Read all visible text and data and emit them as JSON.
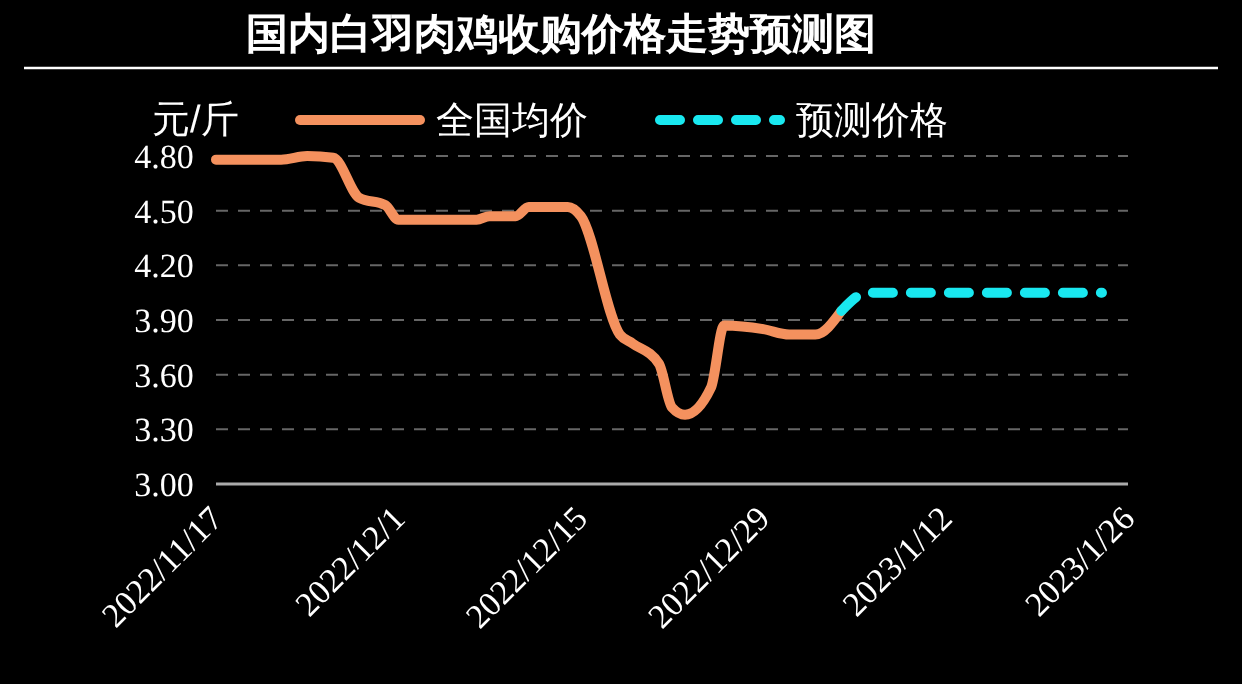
{
  "chart_data": {
    "type": "line",
    "title": "国内白羽肉鸡收购价格走势预测图",
    "ylabel": "元/斤",
    "series": [
      {
        "name": "全国均价",
        "color": "#f4915e",
        "line_style": "solid",
        "x": [
          "2022-11-17",
          "2022-11-22",
          "2022-11-24",
          "2022-11-26",
          "2022-11-28",
          "2022-11-30",
          "2022-12-01",
          "2022-12-07",
          "2022-12-08",
          "2022-12-10",
          "2022-12-11",
          "2022-12-14",
          "2022-12-15",
          "2022-12-18",
          "2022-12-19",
          "2022-12-21",
          "2022-12-22",
          "2022-12-23",
          "2022-12-25",
          "2022-12-26",
          "2022-12-29",
          "2022-12-31",
          "2023-01-02",
          "2023-01-04"
        ],
        "values": [
          4.78,
          4.78,
          4.8,
          4.79,
          4.57,
          4.53,
          4.45,
          4.45,
          4.47,
          4.47,
          4.52,
          4.52,
          4.47,
          3.82,
          3.77,
          3.66,
          3.42,
          3.38,
          3.53,
          3.87,
          3.85,
          3.82,
          3.82,
          3.95
        ]
      },
      {
        "name": "预测价格",
        "color": "#19e8f0",
        "line_style": "dashed",
        "x": [
          "2023-01-04",
          "2023-01-06",
          "2023-01-24"
        ],
        "values": [
          3.95,
          4.05,
          4.05
        ]
      }
    ],
    "xlim": [
      "2022-11-17",
      "2023-01-26"
    ],
    "xticks": [
      {
        "value": "2022-11-17",
        "label": "2022/11/17"
      },
      {
        "value": "2022-12-01",
        "label": "2022/12/1"
      },
      {
        "value": "2022-12-15",
        "label": "2022/12/15"
      },
      {
        "value": "2022-12-29",
        "label": "2022/12/29"
      },
      {
        "value": "2023-01-12",
        "label": "2023/1/12"
      },
      {
        "value": "2023-01-26",
        "label": "2023/1/26"
      }
    ],
    "ylim": [
      3.0,
      4.8
    ],
    "yticks": [
      {
        "value": 3.0,
        "label": "3.00"
      },
      {
        "value": 3.3,
        "label": "3.30"
      },
      {
        "value": 3.6,
        "label": "3.60"
      },
      {
        "value": 3.9,
        "label": "3.90"
      },
      {
        "value": 4.2,
        "label": "4.20"
      },
      {
        "value": 4.5,
        "label": "4.50"
      },
      {
        "value": 4.8,
        "label": "4.80"
      }
    ],
    "grid": "y",
    "legend": "top"
  }
}
